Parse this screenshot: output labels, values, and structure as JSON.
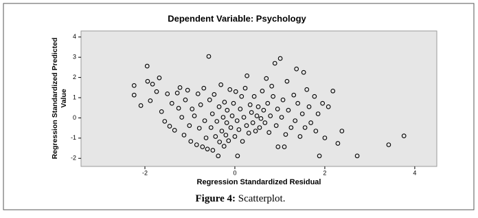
{
  "chart_data": {
    "type": "scatter",
    "title": "Dependent Variable: Psychology",
    "xlabel": "Regression Standardized Residual",
    "ylabel": [
      "Regression Standardized Predicted",
      "Value"
    ],
    "color": "#000000",
    "xlim": [
      -3.42,
      4.49
    ],
    "ylim": [
      -2.4,
      4.3
    ],
    "xticks": [
      -2,
      0,
      2,
      4
    ],
    "yticks": [
      -2,
      -1,
      0,
      1,
      2,
      3,
      4
    ],
    "grid": false,
    "x": [
      -2.24,
      -2.24,
      -2.09,
      -1.95,
      -1.94,
      -1.88,
      -1.83,
      -1.74,
      -1.68,
      -1.63,
      -1.56,
      -1.5,
      -1.45,
      -1.4,
      -1.34,
      -1.28,
      -1.25,
      -1.22,
      -1.18,
      -1.13,
      -1.1,
      -1.05,
      -1.01,
      -0.98,
      -0.95,
      -0.9,
      -0.85,
      -0.82,
      -0.79,
      -0.76,
      -0.72,
      -0.69,
      -0.67,
      -0.64,
      -0.61,
      -0.58,
      -0.56,
      -0.53,
      -0.5,
      -0.49,
      -0.46,
      -0.43,
      -0.4,
      -0.37,
      -0.35,
      -0.34,
      -0.31,
      -0.29,
      -0.26,
      -0.24,
      -0.23,
      -0.2,
      -0.18,
      -0.17,
      -0.14,
      -0.11,
      -0.09,
      -0.06,
      -0.03,
      0,
      0.02,
      0.05,
      0.06,
      0.09,
      0.12,
      0.15,
      0.17,
      0.2,
      0.23,
      0.26,
      0.27,
      0.31,
      0.34,
      0.37,
      0.4,
      0.43,
      0.46,
      0.49,
      0.52,
      0.55,
      0.58,
      0.61,
      0.64,
      0.67,
      0.7,
      0.73,
      0.76,
      0.79,
      0.82,
      0.85,
      0.89,
      0.92,
      0.95,
      0.96,
      1.01,
      1.04,
      1.07,
      1.1,
      1.13,
      1.16,
      1.19,
      1.25,
      1.31,
      1.34,
      1.37,
      1.4,
      1.45,
      1.5,
      1.53,
      1.56,
      1.6,
      1.65,
      1.69,
      1.77,
      1.8,
      1.85,
      1.88,
      1.95,
      2.0,
      2.08,
      2.18,
      2.29,
      2.38,
      2.72,
      3.42,
      3.76
    ],
    "values": [
      1.6,
      1.13,
      0.61,
      2.56,
      1.81,
      0.85,
      1.67,
      1.3,
      1.98,
      0.31,
      -0.17,
      1.19,
      -0.41,
      0.72,
      -0.61,
      1.23,
      0.48,
      1.5,
      0.03,
      -0.85,
      0.89,
      1.37,
      -0.38,
      -1.16,
      0.44,
      0.1,
      -1.33,
      1.19,
      -0.51,
      0.65,
      -1.43,
      1.47,
      -0.14,
      -0.99,
      -1.54,
      3.04,
      0.89,
      -0.48,
      0.2,
      -1.6,
      1.16,
      -0.92,
      -0.17,
      -1.88,
      0.55,
      -1.19,
      1.64,
      -0.65,
      0.03,
      -1.4,
      0.78,
      -0.85,
      -0.24,
      0.38,
      -1.13,
      1.4,
      -0.48,
      0.1,
      0.72,
      -0.92,
      1.3,
      -0.14,
      -1.88,
      -0.58,
      0.44,
      1.06,
      -1.16,
      0.03,
      1.47,
      -0.38,
      2.08,
      -0.75,
      0.65,
      0.27,
      -0.24,
      1.06,
      -0.65,
      0.1,
      0.55,
      -0.48,
      -0.03,
      1.33,
      0.38,
      -0.24,
      1.95,
      0.72,
      -0.72,
      0.1,
      1.57,
      1.06,
      2.7,
      -0.38,
      0.44,
      -1.43,
      2.94,
      0.03,
      0.89,
      -1.43,
      -0.82,
      1.81,
      0.38,
      -0.48,
      1.13,
      -0.14,
      2.42,
      0.72,
      -0.92,
      0.2,
      2.25,
      -0.48,
      1.4,
      0.55,
      -0.24,
      1.06,
      -0.65,
      0.2,
      -1.88,
      0.72,
      -0.99,
      0.55,
      1.33,
      -1.26,
      -0.65,
      -1.88,
      -1.33,
      -0.89
    ]
  },
  "caption": {
    "label": "Figure 4:",
    "text": "Scatterplot."
  }
}
